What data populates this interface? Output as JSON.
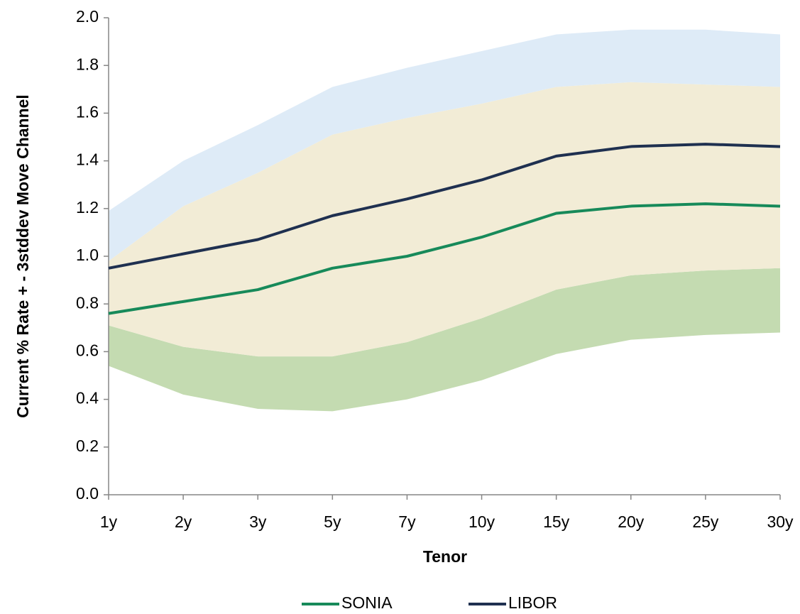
{
  "chart_data": {
    "type": "line",
    "x_label": "Tenor",
    "y_label": "Current %  Rate + - 3stddev Move Channel",
    "categories": [
      "1y",
      "2y",
      "3y",
      "5y",
      "7y",
      "10y",
      "15y",
      "20y",
      "25y",
      "30y"
    ],
    "series": [
      {
        "name": "SONIA",
        "color": "#178a5a",
        "values": [
          0.76,
          0.81,
          0.86,
          0.95,
          1.0,
          1.08,
          1.18,
          1.21,
          1.22,
          1.21
        ]
      },
      {
        "name": "LIBOR",
        "color": "#1f3050",
        "values": [
          0.95,
          1.01,
          1.07,
          1.17,
          1.24,
          1.32,
          1.42,
          1.46,
          1.47,
          1.46
        ]
      }
    ],
    "channel_edges": [
      {
        "values": [
          0.54,
          0.42,
          0.36,
          0.35,
          0.4,
          0.48,
          0.59,
          0.65,
          0.67,
          0.68
        ]
      },
      {
        "values": [
          0.71,
          0.62,
          0.58,
          0.58,
          0.64,
          0.74,
          0.86,
          0.92,
          0.94,
          0.95
        ]
      },
      {
        "values": [
          0.98,
          1.21,
          1.35,
          1.51,
          1.58,
          1.64,
          1.71,
          1.73,
          1.72,
          1.71
        ]
      },
      {
        "values": [
          1.19,
          1.4,
          1.55,
          1.71,
          1.79,
          1.86,
          1.93,
          1.95,
          1.95,
          1.93
        ]
      }
    ],
    "channel_colors": [
      "#c4dbb1",
      "#f2ecd6",
      "#deebf7"
    ],
    "ylim": [
      0,
      2
    ],
    "yticks": [
      {
        "value": 0,
        "label": "0.0"
      },
      0.2,
      0.4,
      0.6,
      0.8,
      {
        "value": 1,
        "label": "1.0"
      },
      1.2,
      1.4,
      1.6,
      1.8,
      {
        "value": 2,
        "label": "2.0"
      }
    ],
    "grid": false,
    "legend": "bottom"
  }
}
